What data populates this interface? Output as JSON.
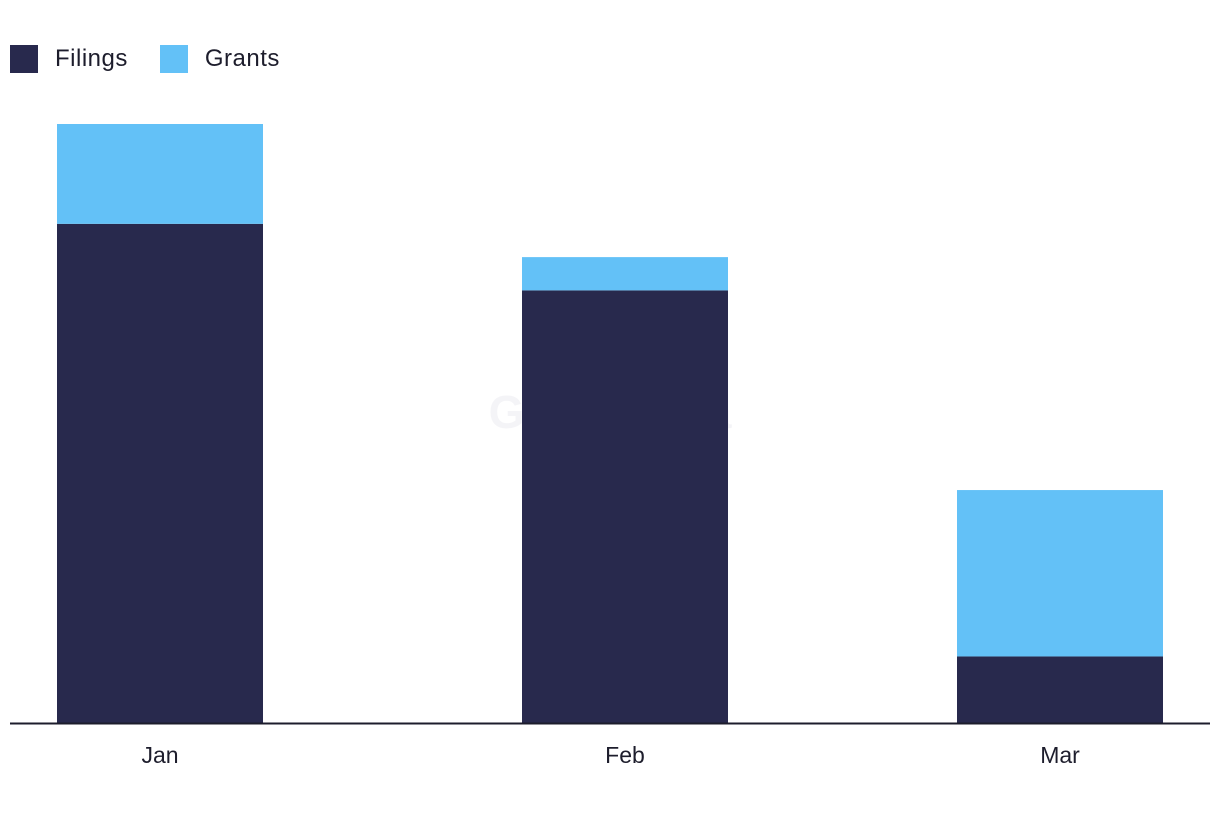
{
  "chart_data": {
    "type": "bar",
    "stacked": true,
    "categories": [
      "Jan",
      "Feb",
      "Mar"
    ],
    "series": [
      {
        "name": "Filings",
        "color": "#28294d",
        "values": [
          15,
          13,
          2
        ]
      },
      {
        "name": "Grants",
        "color": "#63c1f7",
        "values": [
          3,
          1,
          5
        ]
      }
    ],
    "ylim": [
      0,
      18
    ],
    "grid": false,
    "legend_position": "top-left",
    "watermark": "GlobalData"
  }
}
